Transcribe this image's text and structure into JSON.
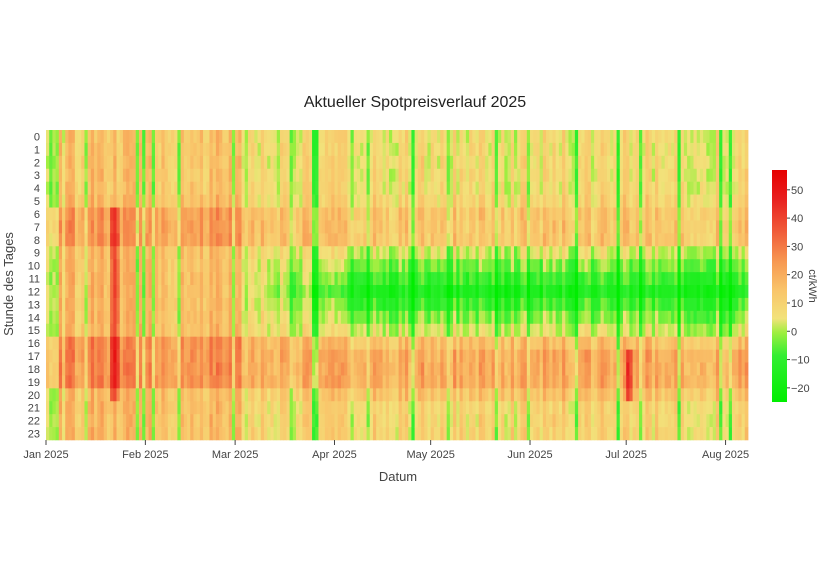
{
  "chart_data": {
    "type": "heatmap",
    "title": "Aktueller Spotpreisverlauf 2025",
    "xlabel": "Datum",
    "ylabel": "Stunde des Tages",
    "x_range": [
      "2025-01-01",
      "2025-08-08"
    ],
    "x_ticks": [
      "Jan 2025",
      "Feb 2025",
      "Mar 2025",
      "Apr 2025",
      "May 2025",
      "Jun 2025",
      "Jul 2025",
      "Aug 2025"
    ],
    "x_tick_dates": [
      "2025-01-01",
      "2025-02-01",
      "2025-03-01",
      "2025-04-01",
      "2025-05-01",
      "2025-06-01",
      "2025-07-01",
      "2025-08-01"
    ],
    "y_ticks": [
      "0",
      "1",
      "2",
      "3",
      "4",
      "5",
      "6",
      "7",
      "8",
      "9",
      "10",
      "11",
      "12",
      "13",
      "14",
      "15",
      "16",
      "17",
      "18",
      "19",
      "20",
      "21",
      "22",
      "23"
    ],
    "y_reversed": true,
    "colorbar": {
      "title": "ct/kWh",
      "range": [
        -25,
        57
      ],
      "ticks": [
        -20,
        -10,
        0,
        10,
        20,
        30,
        40,
        50
      ],
      "colorscale": [
        [
          0.0,
          "#00ee00"
        ],
        [
          0.2,
          "#33ee33"
        ],
        [
          0.3,
          "#a0ee40"
        ],
        [
          0.36,
          "#f2e27a"
        ],
        [
          0.48,
          "#f9c56a"
        ],
        [
          0.6,
          "#f79a52"
        ],
        [
          0.74,
          "#f05a38"
        ],
        [
          0.88,
          "#e81e1e"
        ],
        [
          1.0,
          "#e60000"
        ]
      ]
    },
    "grid": false,
    "legend": "colorbar-right"
  }
}
